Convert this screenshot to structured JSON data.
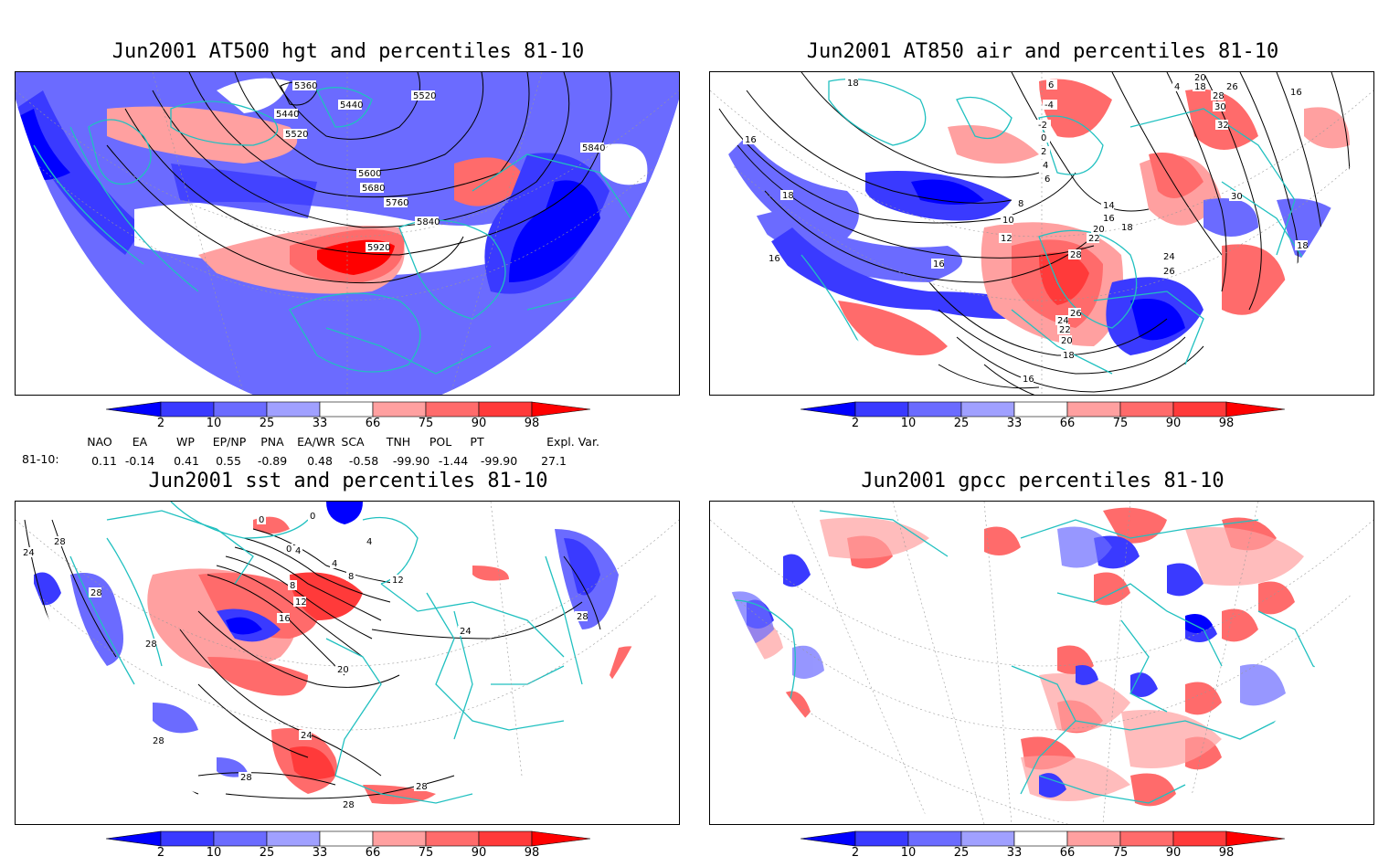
{
  "panels": [
    {
      "title": "Jun2001 AT500 hgt and percentiles 81-10",
      "contour_labels": [
        "5360",
        "5520",
        "5440",
        "5440",
        "5520",
        "5840",
        "5600",
        "5680",
        "5760",
        "5840",
        "5920"
      ]
    },
    {
      "title": "Jun2001 AT850 air and percentiles 81-10",
      "contour_labels": [
        "18",
        "6",
        "-4",
        "4",
        "20",
        "18",
        "28",
        "26",
        "30",
        "32",
        "16",
        "-2",
        "0",
        "2",
        "4",
        "6",
        "18",
        "16",
        "8",
        "14",
        "10",
        "16",
        "18",
        "30",
        "20",
        "12",
        "22",
        "24",
        "26",
        "16",
        "28",
        "24",
        "26",
        "22",
        "20",
        "18",
        "16",
        "16",
        "18"
      ]
    },
    {
      "title": "Jun2001 sst and percentiles 81-10",
      "contour_labels": [
        "24",
        "28",
        "28",
        "0",
        "0",
        "0",
        "4",
        "4",
        "4",
        "8",
        "8",
        "12",
        "12",
        "16",
        "20",
        "24",
        "24",
        "28",
        "28",
        "28",
        "28",
        "28",
        "28"
      ]
    },
    {
      "title": "Jun2001 gpcc percentiles 81-10",
      "contour_labels": []
    }
  ],
  "colorbar": {
    "ticks": [
      "2",
      "10",
      "25",
      "33",
      "66",
      "75",
      "90",
      "98"
    ],
    "colors": [
      "#0000ff",
      "#3a3aff",
      "#6b6bff",
      "#a0a0ff",
      "#ffffff",
      "#ffa0a0",
      "#ff6b6b",
      "#ff3a3a",
      "#ff0000"
    ]
  },
  "indices": {
    "headers": [
      "NAO",
      "EA",
      "WP",
      "EP/NP",
      "PNA",
      "EA/WR",
      "SCA",
      "TNH",
      "POL",
      "PT",
      "Expl. Var."
    ],
    "row_label": "81-10:",
    "values": [
      "0.11",
      "-0.14",
      "0.41",
      "0.55",
      "-0.89",
      "0.48",
      "-0.58",
      "-99.90",
      "-1.44",
      "-99.90",
      "27.1"
    ]
  }
}
